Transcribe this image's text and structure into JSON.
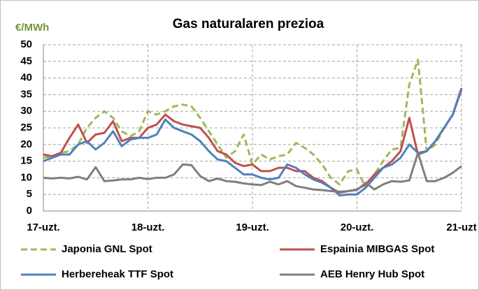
{
  "chart_data": {
    "type": "line",
    "title": "Gas naturalaren prezioa",
    "y_label": "€/MWh",
    "categories": [
      "17-uzt.",
      null,
      null,
      null,
      null,
      null,
      null,
      null,
      null,
      null,
      null,
      null,
      "18-uzt.",
      null,
      null,
      null,
      null,
      null,
      null,
      null,
      null,
      null,
      null,
      null,
      "19-uzt.",
      null,
      null,
      null,
      null,
      null,
      null,
      null,
      null,
      null,
      null,
      null,
      "20-uzt.",
      null,
      null,
      null,
      null,
      null,
      null,
      null,
      null,
      null,
      null,
      null,
      "21-uzt"
    ],
    "ylim": [
      0,
      50
    ],
    "yticks": [
      0,
      5,
      10,
      15,
      20,
      25,
      30,
      35,
      40,
      45,
      50
    ],
    "grid": true,
    "series": [
      {
        "name": "Japonia GNL Spot",
        "color": "#9bbb59",
        "dashed": true,
        "values": [
          16,
          16.5,
          17.5,
          18,
          20,
          25,
          28,
          30,
          28,
          24,
          22.5,
          24,
          30,
          29,
          30,
          31.5,
          32,
          31.5,
          28,
          24,
          20,
          16,
          18,
          23,
          14,
          17,
          15.5,
          16.5,
          17,
          20.5,
          19,
          17,
          14,
          10,
          8,
          12,
          12.5,
          7,
          11,
          15,
          18.5,
          19,
          38,
          45.5,
          18,
          20,
          25,
          29,
          37
        ]
      },
      {
        "name": "Espainia MIBGAS Spot",
        "color": "#c0504d",
        "dashed": false,
        "values": [
          17,
          16.5,
          17.5,
          22,
          26,
          20.5,
          23,
          23.5,
          27,
          21,
          22,
          22,
          25,
          26,
          29,
          27,
          26,
          25.5,
          25,
          22,
          18,
          17,
          14.5,
          13.5,
          14,
          12,
          12,
          13,
          13,
          12,
          12,
          10,
          9,
          7,
          5.5,
          6,
          6.5,
          8,
          11,
          13,
          15,
          18,
          28,
          17,
          18,
          21,
          25,
          29,
          37
        ]
      },
      {
        "name": "Herbereheak TTF Spot",
        "color": "#4f81bd",
        "dashed": false,
        "values": [
          15,
          16,
          17,
          17,
          20,
          21,
          18.5,
          20.5,
          24,
          19.5,
          21.5,
          22,
          22,
          23,
          27.5,
          25,
          24,
          23,
          21,
          18,
          15.5,
          15,
          13,
          11,
          11,
          10,
          9.5,
          10,
          14,
          13,
          11,
          9.5,
          8.5,
          7,
          4.7,
          5,
          5,
          7,
          10,
          13,
          14,
          16,
          20,
          17.5,
          18,
          21,
          25,
          29,
          36.5
        ]
      },
      {
        "name": "AEB Henry Hub Spot",
        "color": "#7f7f7f",
        "dashed": false,
        "values": [
          10,
          9.8,
          10,
          9.8,
          10.3,
          9.5,
          13.2,
          9,
          9.2,
          9.5,
          9.5,
          10,
          9.6,
          10,
          10,
          11,
          14,
          13.8,
          10.5,
          9,
          9.8,
          9,
          8.8,
          8.3,
          8,
          7.8,
          8.8,
          8,
          9,
          7.5,
          7,
          6.5,
          6.3,
          6,
          5.8,
          6,
          6.3,
          8.5,
          6.5,
          8,
          9,
          8.8,
          9.2,
          17.5,
          9,
          9,
          10,
          11.5,
          13.5
        ]
      }
    ]
  }
}
